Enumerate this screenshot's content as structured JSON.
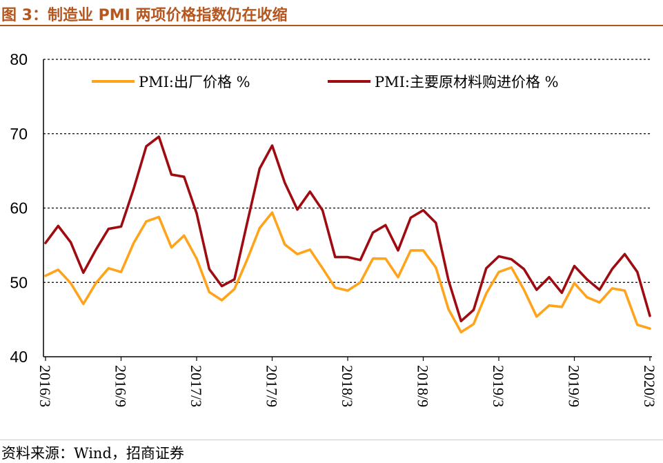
{
  "title": "图 3：制造业 PMI 两项价格指数仍在收缩",
  "source": "资料来源：Wind，招商证券",
  "colors": {
    "output_price": "#ffa31a",
    "input_price": "#9e0c12",
    "title": "#b5561e"
  },
  "chart_data": {
    "type": "line",
    "ylim": [
      40,
      80
    ],
    "yticks": [
      40,
      50,
      60,
      70,
      80
    ],
    "grid": "horizontal-dashed",
    "legend_placement": "top",
    "x_tick_labels": [
      "2016/3",
      "2016/9",
      "2017/3",
      "2017/9",
      "2018/3",
      "2018/9",
      "2019/3",
      "2019/9",
      "2020/3"
    ],
    "x": [
      "2016/3",
      "2016/4",
      "2016/5",
      "2016/6",
      "2016/7",
      "2016/8",
      "2016/9",
      "2016/10",
      "2016/11",
      "2016/12",
      "2017/1",
      "2017/2",
      "2017/3",
      "2017/4",
      "2017/5",
      "2017/6",
      "2017/7",
      "2017/8",
      "2017/9",
      "2017/10",
      "2017/11",
      "2017/12",
      "2018/1",
      "2018/2",
      "2018/3",
      "2018/4",
      "2018/5",
      "2018/6",
      "2018/7",
      "2018/8",
      "2018/9",
      "2018/10",
      "2018/11",
      "2018/12",
      "2019/1",
      "2019/2",
      "2019/3",
      "2019/4",
      "2019/5",
      "2019/6",
      "2019/7",
      "2019/8",
      "2019/9",
      "2019/10",
      "2019/11",
      "2019/12",
      "2020/1",
      "2020/2",
      "2020/3"
    ],
    "series": [
      {
        "name": "PMI:出厂价格 %",
        "values": [
          50.9,
          51.7,
          49.9,
          47.1,
          49.9,
          51.9,
          51.4,
          55.3,
          58.2,
          58.8,
          54.7,
          56.3,
          53.2,
          48.7,
          47.6,
          49.1,
          53.0,
          57.3,
          59.4,
          55.1,
          53.8,
          54.4,
          51.9,
          49.3,
          48.9,
          50.0,
          53.2,
          53.2,
          50.7,
          54.3,
          54.3,
          52.0,
          46.4,
          43.3,
          44.4,
          48.5,
          51.4,
          52.0,
          49.0,
          45.4,
          46.9,
          46.7,
          49.9,
          48.0,
          47.3,
          49.2,
          48.9,
          44.3,
          43.8
        ]
      },
      {
        "name": "PMI:主要原材料购进价格 %",
        "values": [
          55.3,
          57.6,
          55.4,
          51.3,
          54.4,
          57.2,
          57.5,
          62.6,
          68.3,
          69.6,
          64.5,
          64.2,
          59.3,
          51.8,
          49.5,
          50.4,
          57.9,
          65.3,
          68.4,
          63.4,
          59.8,
          62.2,
          59.7,
          53.4,
          53.4,
          53.0,
          56.7,
          57.7,
          54.3,
          58.7,
          59.7,
          58.0,
          50.3,
          44.8,
          46.3,
          51.9,
          53.5,
          53.1,
          51.8,
          49.0,
          50.7,
          48.6,
          52.2,
          50.4,
          49.0,
          51.8,
          53.8,
          51.4,
          45.5
        ]
      }
    ]
  }
}
